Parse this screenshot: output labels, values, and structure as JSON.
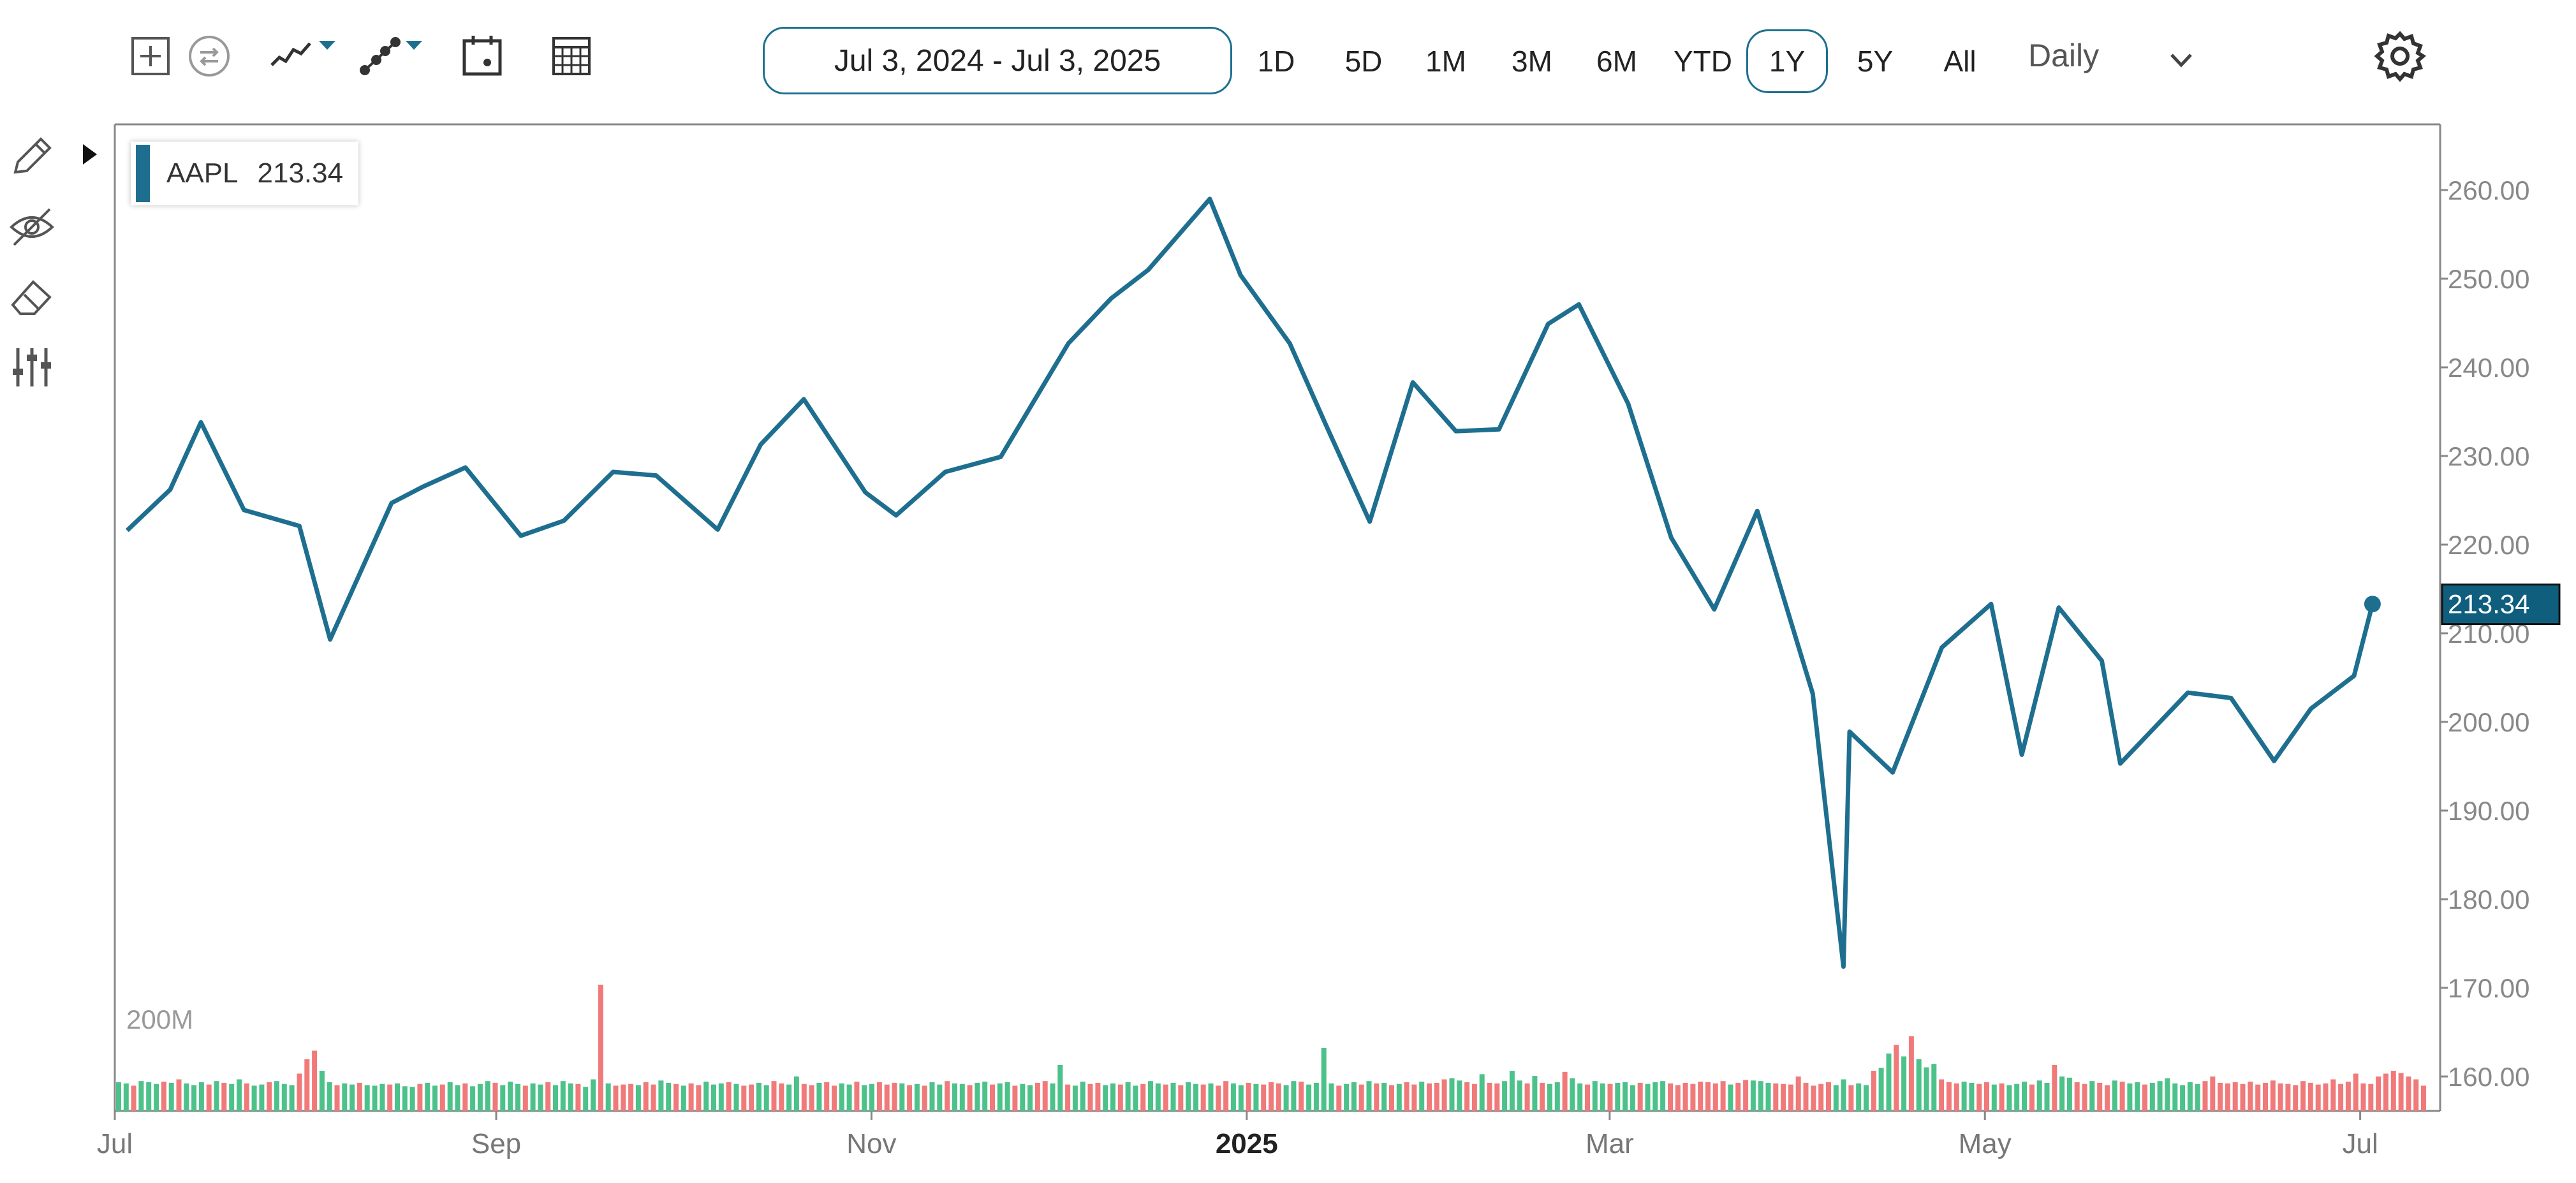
{
  "toolbar": {
    "date_range": "Jul 3, 2024 - Jul 3, 2025",
    "ranges": [
      "1D",
      "5D",
      "1M",
      "3M",
      "6M",
      "YTD",
      "1Y",
      "5Y",
      "All"
    ],
    "active_range": "1Y",
    "interval": "Daily"
  },
  "legend": {
    "symbol": "AAPL",
    "value": "213.34"
  },
  "colors": {
    "line": "#1e6f8f",
    "up": "#4cc28a",
    "down": "#f07a7a",
    "accent": "#1e6f8f"
  },
  "chart_data": {
    "type": "line",
    "series": [
      {
        "name": "AAPL",
        "x": [
          "2024-07-03",
          "2024-07-10",
          "2024-07-15",
          "2024-07-22",
          "2024-07-31",
          "2024-08-05",
          "2024-08-15",
          "2024-08-20",
          "2024-08-27",
          "2024-09-05",
          "2024-09-12",
          "2024-09-20",
          "2024-09-27",
          "2024-10-07",
          "2024-10-14",
          "2024-10-21",
          "2024-10-31",
          "2024-11-05",
          "2024-11-13",
          "2024-11-22",
          "2024-12-03",
          "2024-12-10",
          "2024-12-16",
          "2024-12-26",
          "2024-12-31",
          "2025-01-08",
          "2025-01-14",
          "2025-01-21",
          "2025-01-28",
          "2025-02-04",
          "2025-02-11",
          "2025-02-19",
          "2025-02-24",
          "2025-03-04",
          "2025-03-11",
          "2025-03-18",
          "2025-03-25",
          "2025-04-03",
          "2025-04-08",
          "2025-04-09",
          "2025-04-16",
          "2025-04-24",
          "2025-05-02",
          "2025-05-07",
          "2025-05-13",
          "2025-05-20",
          "2025-05-23",
          "2025-06-03",
          "2025-06-10",
          "2025-06-17",
          "2025-06-23",
          "2025-06-30",
          "2025-07-03"
        ],
        "y": [
          221.6,
          226.2,
          233.8,
          223.9,
          222.1,
          209.3,
          224.7,
          226.5,
          228.7,
          221.0,
          222.7,
          228.2,
          227.8,
          221.7,
          231.3,
          236.4,
          225.9,
          223.3,
          228.2,
          229.9,
          242.7,
          247.8,
          251.0,
          259.0,
          250.4,
          242.7,
          233.3,
          222.6,
          238.3,
          232.8,
          233.0,
          244.9,
          247.1,
          235.9,
          220.8,
          212.7,
          223.8,
          203.2,
          172.4,
          198.9,
          194.3,
          208.4,
          213.3,
          196.3,
          212.9,
          206.9,
          195.3,
          203.3,
          202.7,
          195.6,
          201.5,
          205.2,
          213.3
        ]
      }
    ],
    "volume": {
      "label": "200M",
      "values": [
        50,
        48,
        44,
        52,
        50,
        47,
        51,
        49,
        55,
        48,
        45,
        50,
        46,
        52,
        49,
        47,
        55,
        48,
        44,
        46,
        50,
        52,
        47,
        45,
        65,
        90,
        105,
        70,
        50,
        45,
        48,
        46,
        49,
        45,
        44,
        47,
        46,
        48,
        43,
        42,
        47,
        49,
        44,
        46,
        50,
        45,
        48,
        43,
        47,
        52,
        49,
        45,
        51,
        47,
        44,
        48,
        46,
        50,
        45,
        52,
        48,
        47,
        42,
        55,
        220,
        48,
        44,
        46,
        47,
        45,
        50,
        46,
        53,
        49,
        47,
        44,
        48,
        45,
        51,
        46,
        48,
        50,
        47,
        44,
        46,
        49,
        45,
        52,
        48,
        46,
        60,
        47,
        45,
        49,
        50,
        44,
        48,
        46,
        51,
        45,
        47,
        50,
        46,
        49,
        48,
        45,
        47,
        44,
        50,
        46,
        52,
        48,
        47,
        45,
        49,
        51,
        46,
        48,
        50,
        44,
        47,
        45,
        49,
        52,
        48,
        80,
        46,
        44,
        51,
        47,
        49,
        45,
        48,
        46,
        50,
        44,
        47,
        52,
        48,
        46,
        49,
        45,
        50,
        47,
        46,
        48,
        44,
        52,
        48,
        45,
        49,
        47,
        46,
        50,
        48,
        45,
        52,
        51,
        46,
        49,
        110,
        48,
        44,
        47,
        50,
        46,
        52,
        48,
        49,
        45,
        47,
        50,
        46,
        51,
        48,
        49,
        55,
        57,
        53,
        50,
        47,
        64,
        49,
        48,
        52,
        70,
        53,
        48,
        61,
        49,
        47,
        50,
        68,
        57,
        48,
        46,
        52,
        48,
        47,
        49,
        50,
        45,
        49,
        47,
        50,
        52,
        48,
        45,
        49,
        47,
        51,
        50,
        48,
        52,
        46,
        49,
        54,
        53,
        52,
        49,
        48,
        47,
        46,
        60,
        49,
        44,
        47,
        50,
        45,
        55,
        45,
        48,
        45,
        70,
        75,
        100,
        115,
        95,
        130,
        90,
        76,
        82,
        55,
        50,
        48,
        51,
        49,
        47,
        50,
        46,
        48,
        45,
        47,
        51,
        46,
        53,
        49,
        80,
        60,
        58,
        50,
        47,
        52,
        49,
        45,
        53,
        51,
        48,
        50,
        46,
        49,
        52,
        57,
        48,
        45,
        50,
        47,
        52,
        60,
        49,
        48,
        50,
        47,
        51,
        46,
        49,
        53,
        48,
        47,
        45,
        52,
        49,
        46,
        48,
        55,
        47,
        51,
        65,
        48,
        47,
        60,
        65,
        70,
        66,
        60,
        55,
        44
      ],
      "up_flags": [
        1,
        1,
        0,
        1,
        1,
        1,
        0,
        1,
        0,
        1,
        1,
        1,
        0,
        1,
        0,
        1,
        1,
        0,
        1,
        1,
        0,
        1,
        1,
        1,
        0,
        0,
        0,
        1,
        1,
        0,
        1,
        1,
        0,
        1,
        1,
        1,
        0,
        1,
        1,
        1,
        0,
        1,
        1,
        0,
        1,
        1,
        0,
        1,
        1,
        1,
        0,
        1,
        1,
        1,
        0,
        1,
        1,
        0,
        1,
        1,
        1,
        0,
        1,
        1,
        0,
        1,
        0,
        0,
        0,
        1,
        0,
        0,
        1,
        1,
        0,
        1,
        0,
        0,
        1,
        1,
        1,
        0,
        1,
        0,
        0,
        1,
        1,
        0,
        0,
        1,
        1,
        0,
        0,
        1,
        0,
        0,
        1,
        1,
        0,
        1,
        1,
        0,
        0,
        0,
        1,
        0,
        1,
        0,
        1,
        1,
        0,
        1,
        1,
        0,
        1,
        1,
        0,
        1,
        1,
        0,
        1,
        1,
        0,
        0,
        1,
        1,
        0,
        1,
        1,
        0,
        0,
        1,
        1,
        0,
        1,
        1,
        0,
        1,
        1,
        0,
        1,
        0,
        1,
        1,
        0,
        1,
        0,
        0,
        1,
        1,
        0,
        1,
        0,
        0,
        0,
        1,
        1,
        0,
        1,
        1,
        1,
        1,
        0,
        1,
        1,
        0,
        1,
        0,
        1,
        0,
        1,
        0,
        0,
        1,
        0,
        0,
        0,
        1,
        1,
        0,
        0,
        1,
        0,
        0,
        1,
        1,
        1,
        0,
        1,
        0,
        1,
        1,
        0,
        1,
        1,
        0,
        1,
        1,
        0,
        1,
        1,
        1,
        0,
        1,
        1,
        1,
        0,
        0,
        0,
        0,
        0,
        0,
        0,
        0,
        1,
        0,
        0,
        1,
        1,
        1,
        0,
        0,
        0,
        0,
        0,
        0,
        0,
        0,
        1,
        1,
        0,
        1,
        1,
        0,
        1,
        1,
        0,
        1,
        0,
        1,
        1,
        1,
        0,
        0,
        0,
        1,
        1,
        0,
        0,
        1,
        0,
        1,
        1,
        1,
        0,
        1,
        1,
        0,
        1,
        1,
        0,
        0,
        1,
        0,
        0,
        1,
        0,
        1,
        1,
        0,
        1,
        1,
        1,
        1,
        1,
        1,
        1,
        0
      ]
    },
    "x_ticks": [
      {
        "date": "2024-07-01",
        "label": "Jul",
        "bold": false
      },
      {
        "date": "2024-09-01",
        "label": "Sep",
        "bold": false
      },
      {
        "date": "2024-11-01",
        "label": "Nov",
        "bold": false
      },
      {
        "date": "2025-01-01",
        "label": "2025",
        "bold": true
      },
      {
        "date": "2025-03-01",
        "label": "Mar",
        "bold": false
      },
      {
        "date": "2025-05-01",
        "label": "May",
        "bold": false
      },
      {
        "date": "2025-07-01",
        "label": "Jul",
        "bold": false
      }
    ],
    "y_ticks": [
      "260.00",
      "250.00",
      "240.00",
      "230.00",
      "220.00",
      "210.00",
      "200.00",
      "190.00",
      "180.00",
      "170.00",
      "160.00"
    ],
    "ylim": [
      155,
      268
    ],
    "last_value": "213.34",
    "grid": false
  }
}
